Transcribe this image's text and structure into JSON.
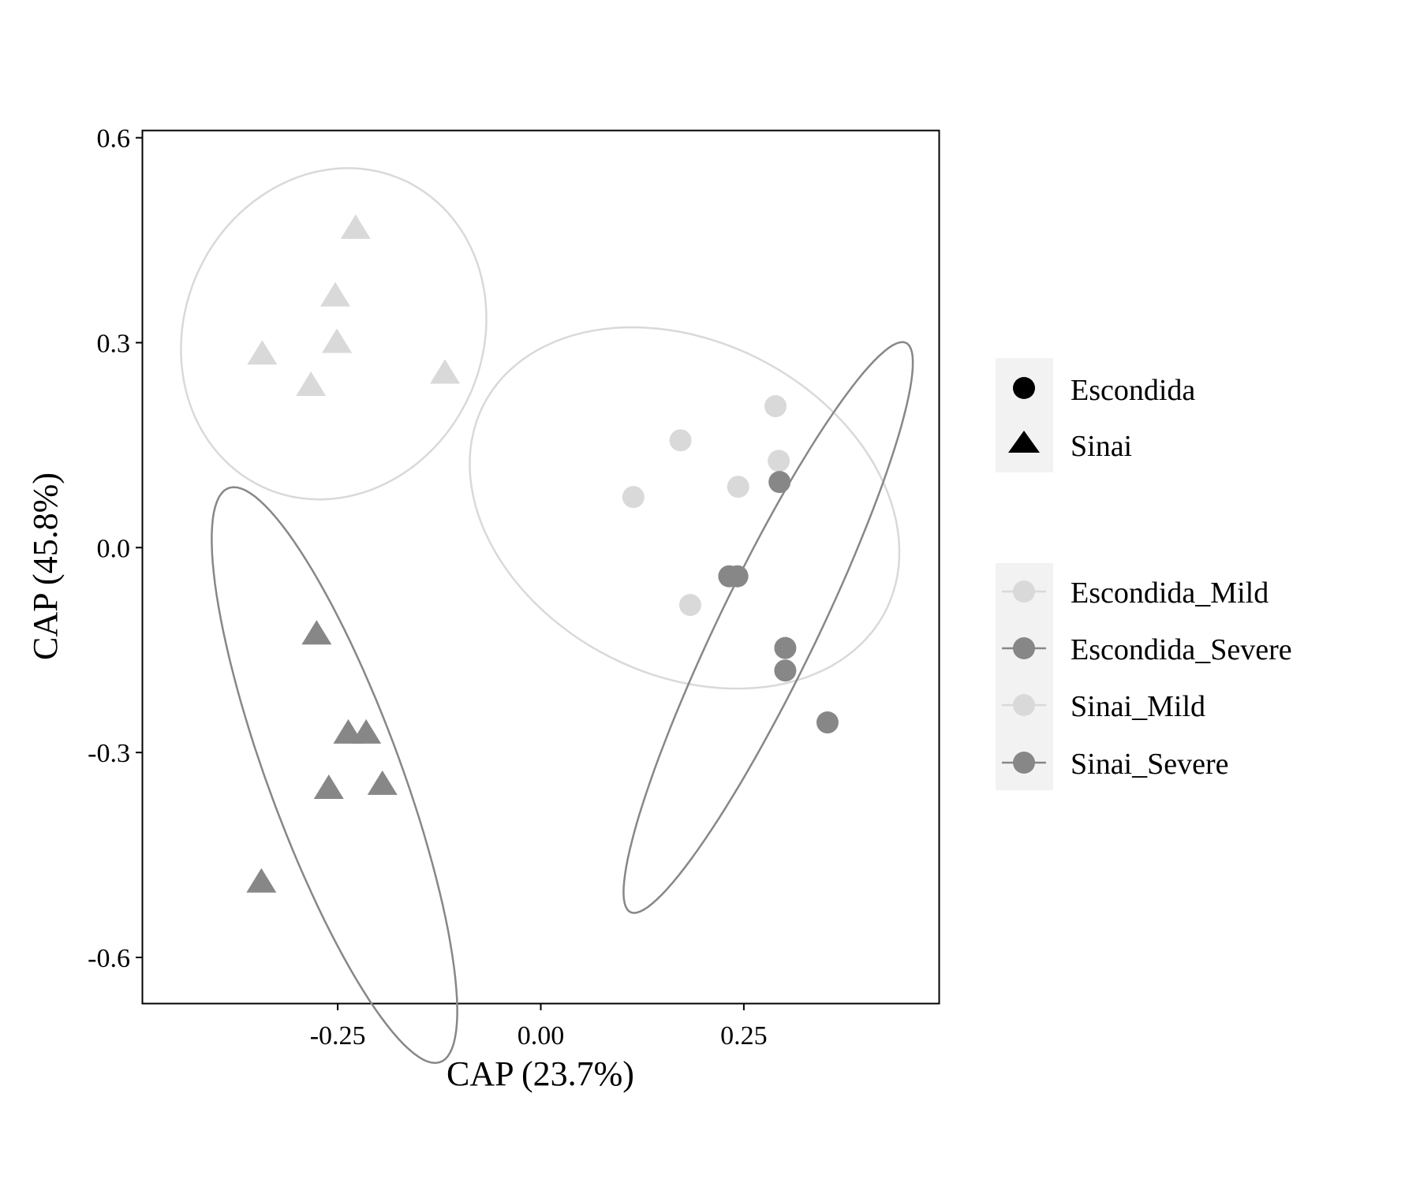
{
  "chart_data": {
    "type": "scatter",
    "title": "",
    "xlabel": "CAP (23.7%)",
    "ylabel": "CAP (45.8%)",
    "xlim": [
      -0.49,
      0.49
    ],
    "ylim": [
      -0.667,
      0.61
    ],
    "x_ticks": [
      -0.25,
      0.0,
      0.25
    ],
    "x_tick_labels": [
      "-0.25",
      "0.00",
      "0.25"
    ],
    "y_ticks": [
      -0.6,
      -0.3,
      0.0,
      0.3,
      0.6
    ],
    "y_tick_labels": [
      "-0.6",
      "-0.3",
      "0.0",
      "0.3",
      "0.6"
    ],
    "grid": false,
    "legend_position": "right",
    "colors": {
      "mild": "#d9d9d9",
      "severe": "#878787",
      "frame": "#000000"
    },
    "shape_legend": {
      "items": [
        {
          "label": "Escondida",
          "shape": "circle"
        },
        {
          "label": "Sinai",
          "shape": "triangle"
        }
      ]
    },
    "group_legend": {
      "items": [
        {
          "label": "Escondida_Mild",
          "color": "#d9d9d9"
        },
        {
          "label": "Escondida_Severe",
          "color": "#878787"
        },
        {
          "label": "Sinai_Mild",
          "color": "#d9d9d9"
        },
        {
          "label": "Sinai_Severe",
          "color": "#878787"
        }
      ]
    },
    "series": [
      {
        "name": "Escondida_Mild",
        "shape": "circle",
        "color": "#d9d9d9",
        "points": [
          [
            0.114,
            0.074
          ],
          [
            0.172,
            0.157
          ],
          [
            0.243,
            0.089
          ],
          [
            0.289,
            0.207
          ],
          [
            0.293,
            0.127
          ],
          [
            0.184,
            -0.084
          ]
        ],
        "ellipse": {
          "center": [
            0.177,
            0.058
          ],
          "semi_axes": [
            0.23,
            0.295
          ],
          "angle_deg": 45
        }
      },
      {
        "name": "Escondida_Severe",
        "shape": "circle",
        "color": "#878787",
        "points": [
          [
            0.294,
            0.096
          ],
          [
            0.232,
            -0.042
          ],
          [
            0.242,
            -0.042
          ],
          [
            0.301,
            -0.147
          ],
          [
            0.301,
            -0.18
          ],
          [
            0.353,
            -0.256
          ]
        ],
        "ellipse": {
          "center": [
            0.28,
            -0.117
          ],
          "semi_axes": [
            0.062,
            0.45
          ],
          "angle_deg": -22
        }
      },
      {
        "name": "Sinai_Mild",
        "shape": "triangle",
        "color": "#d9d9d9",
        "points": [
          [
            -0.228,
            0.467
          ],
          [
            -0.253,
            0.368
          ],
          [
            -0.251,
            0.3
          ],
          [
            -0.343,
            0.283
          ],
          [
            -0.283,
            0.237
          ],
          [
            -0.118,
            0.255
          ]
        ],
        "ellipse": {
          "center": [
            -0.255,
            0.313
          ],
          "semi_axes": [
            0.186,
            0.244
          ],
          "angle_deg": -10
        }
      },
      {
        "name": "Sinai_Severe",
        "shape": "triangle",
        "color": "#878787",
        "points": [
          [
            -0.276,
            -0.127
          ],
          [
            -0.237,
            -0.272
          ],
          [
            -0.215,
            -0.272
          ],
          [
            -0.261,
            -0.353
          ],
          [
            -0.195,
            -0.347
          ],
          [
            -0.344,
            -0.49
          ]
        ],
        "ellipse": {
          "center": [
            -0.254,
            -0.333
          ],
          "semi_axes": [
            0.083,
            0.44
          ],
          "angle_deg": 17
        }
      }
    ]
  }
}
